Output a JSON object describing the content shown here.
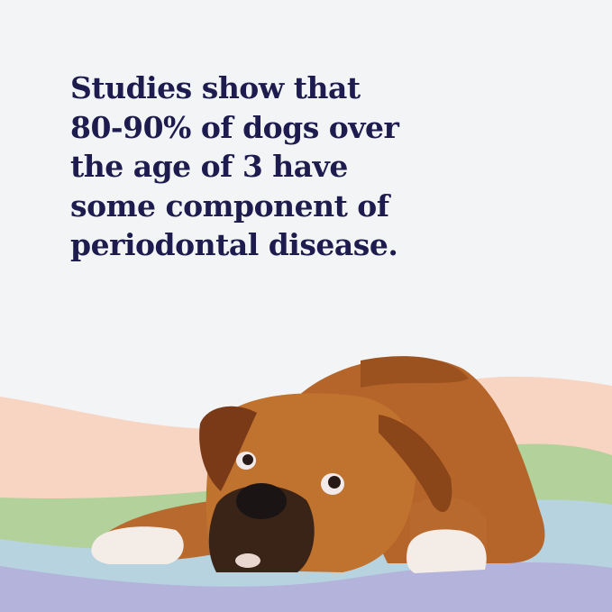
{
  "headline": {
    "lines": [
      "Studies show that",
      "80-90% of dogs over",
      "the age of 3 have",
      "some component of",
      "periodontal disease."
    ]
  },
  "colors": {
    "background": "#f3f4f6",
    "text": "#1e1c4e",
    "wave_peach": "#f8d5c3",
    "wave_green": "#b3d29b",
    "wave_blue": "#b7d3df",
    "wave_purple": "#b4b3dc"
  },
  "image": {
    "subject": "boxer-dog-lying-down-photo"
  }
}
